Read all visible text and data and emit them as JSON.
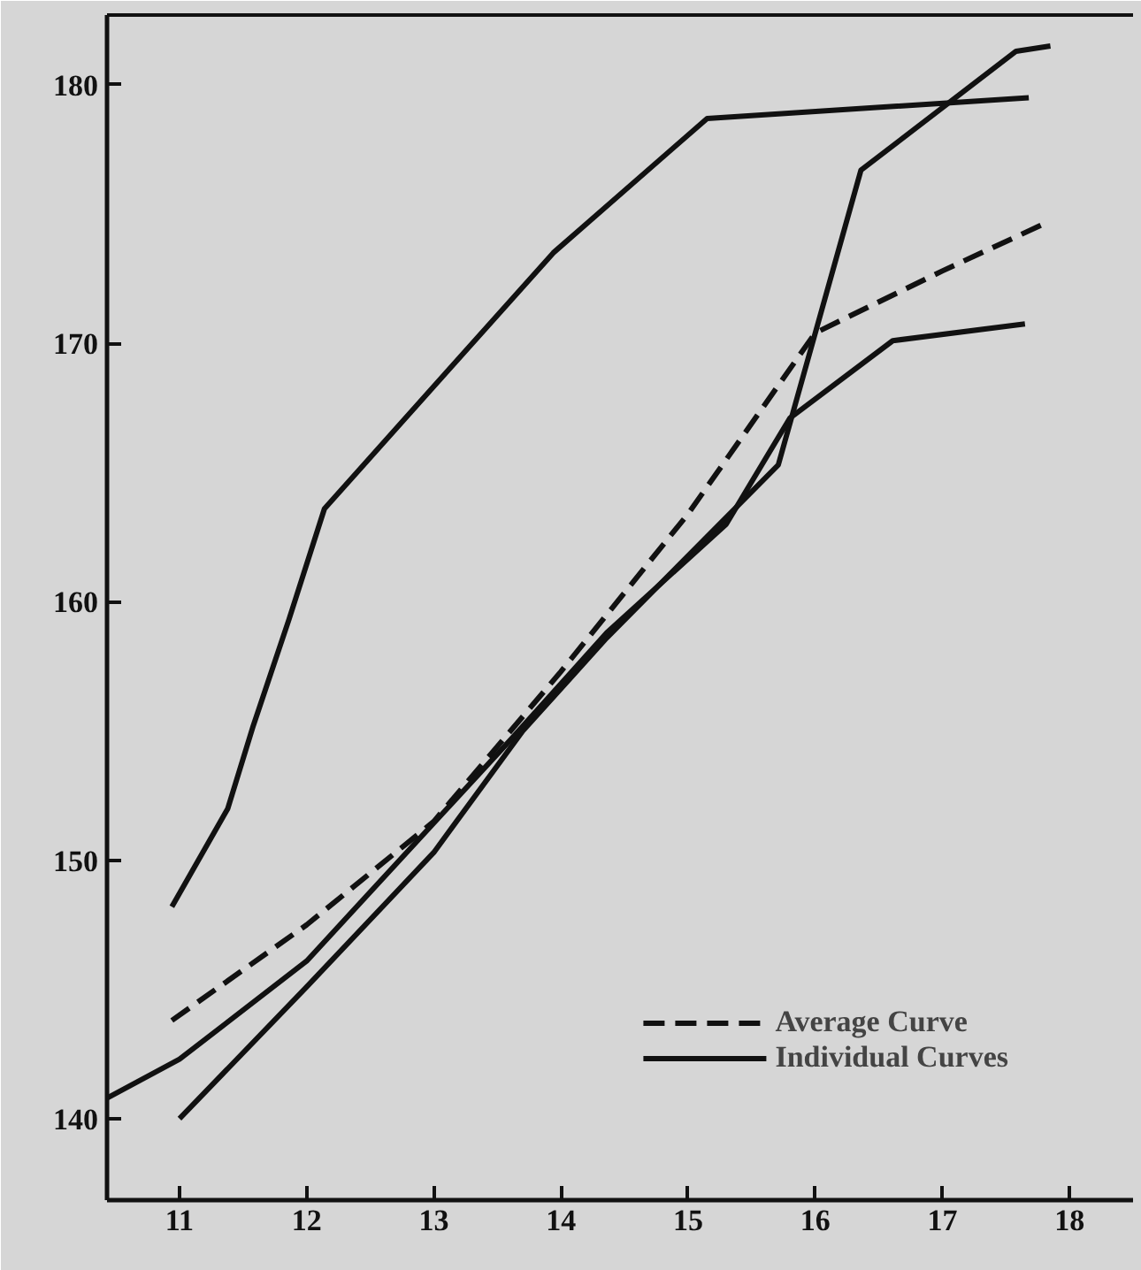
{
  "chart_data": {
    "type": "line",
    "xlim": [
      10.43,
      18.5
    ],
    "ylim": [
      136.85,
      182.7
    ],
    "xticks": [
      11,
      12,
      13,
      14,
      15,
      16,
      17,
      18
    ],
    "yticks": [
      140,
      150,
      160,
      170,
      180
    ],
    "grid": false,
    "legend": "bottom right",
    "marker": "none",
    "series": [
      {
        "name": "Average Curve",
        "color": "#111111",
        "line_style": "dashed",
        "x": [
          10.94,
          12,
          13,
          14,
          15,
          16,
          17,
          17.79
        ],
        "values": [
          143.8,
          147.5,
          151.5,
          157.3,
          163.4,
          170.4,
          172.8,
          174.6
        ]
      },
      {
        "name": "Individual Curves",
        "color": "#111111",
        "line_style": "solid",
        "x": [
          10.94,
          11.38,
          11.58,
          11.86,
          12.14,
          13.94,
          15.15,
          17.68
        ],
        "values": [
          148.2,
          152.0,
          155.2,
          159.3,
          163.6,
          173.5,
          178.7,
          179.5
        ]
      },
      {
        "color": "#111111",
        "line_style": "solid",
        "x": [
          11,
          12,
          13,
          13.7,
          14.36,
          15.71,
          16.36,
          17.58,
          17.85
        ],
        "values": [
          140.0,
          145.1,
          150.3,
          155.0,
          158.6,
          165.3,
          176.7,
          181.3,
          181.5
        ]
      },
      {
        "color": "#111111",
        "line_style": "solid",
        "x": [
          10.43,
          11,
          12,
          13.63,
          14.36,
          15.3,
          15.8,
          16.61,
          17.65
        ],
        "values": [
          140.8,
          142.3,
          146.1,
          154.8,
          158.8,
          163.0,
          167.1,
          170.1,
          170.75
        ]
      }
    ]
  }
}
